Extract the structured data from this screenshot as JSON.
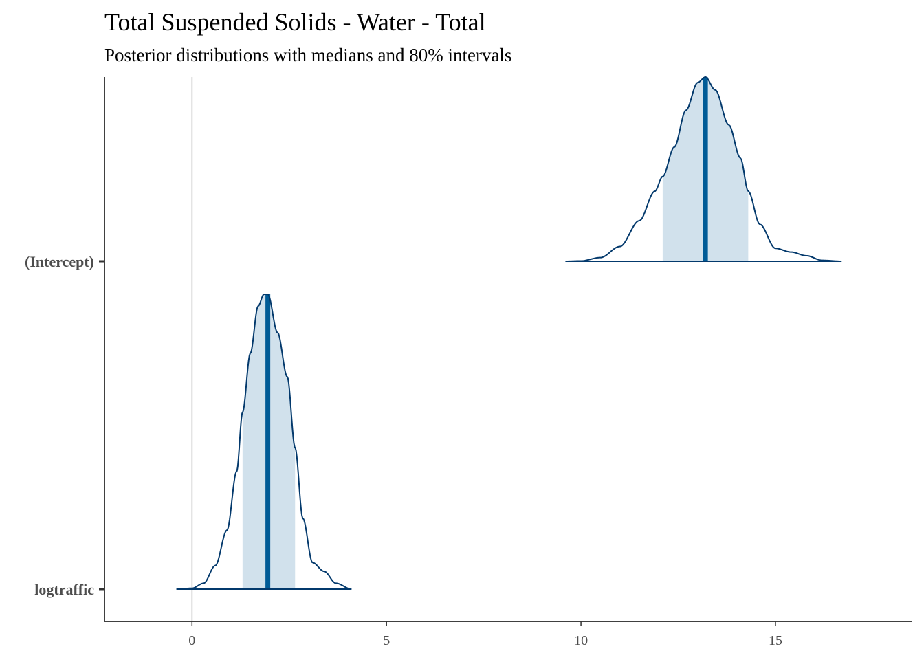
{
  "chart_data": {
    "type": "area",
    "title": "Total Suspended Solids - Water - Total",
    "subtitle": "Posterior distributions with medians and 80% intervals",
    "xlabel": "",
    "ylabel": "",
    "xlim": [
      -2.25,
      18.5
    ],
    "x_ticks": [
      0,
      5,
      10,
      15
    ],
    "x_tick_labels": [
      "0",
      "5",
      "10",
      "15"
    ],
    "reference_line_x": 0,
    "grid": false,
    "legend": "none",
    "colors": {
      "outline": "#03396c",
      "interval_fill": "#d1e1ec",
      "median": "#005b96",
      "reference_line": "#d9d9d9",
      "axis": "#000000"
    },
    "series": [
      {
        "name": "(Intercept)",
        "median": 13.2,
        "interval_80": [
          12.1,
          14.3
        ],
        "range": [
          9.6,
          16.7
        ],
        "density": [
          [
            9.6,
            0.0
          ],
          [
            10.0,
            0.002
          ],
          [
            10.5,
            0.02
          ],
          [
            11.0,
            0.08
          ],
          [
            11.5,
            0.22
          ],
          [
            11.9,
            0.38
          ],
          [
            12.1,
            0.46
          ],
          [
            12.4,
            0.62
          ],
          [
            12.7,
            0.82
          ],
          [
            13.0,
            0.97
          ],
          [
            13.2,
            1.0
          ],
          [
            13.45,
            0.93
          ],
          [
            13.8,
            0.74
          ],
          [
            14.1,
            0.56
          ],
          [
            14.3,
            0.38
          ],
          [
            14.6,
            0.2
          ],
          [
            15.0,
            0.07
          ],
          [
            15.4,
            0.05
          ],
          [
            15.8,
            0.03
          ],
          [
            16.2,
            0.005
          ],
          [
            16.7,
            0.0
          ]
        ]
      },
      {
        "name": "logtraffic",
        "median": 1.95,
        "interval_80": [
          1.3,
          2.65
        ],
        "range": [
          -0.4,
          4.1
        ],
        "density": [
          [
            -0.4,
            0.0
          ],
          [
            0.0,
            0.003
          ],
          [
            0.3,
            0.02
          ],
          [
            0.6,
            0.08
          ],
          [
            0.9,
            0.2
          ],
          [
            1.15,
            0.4
          ],
          [
            1.3,
            0.6
          ],
          [
            1.5,
            0.8
          ],
          [
            1.7,
            0.96
          ],
          [
            1.85,
            1.0
          ],
          [
            1.95,
            1.0
          ],
          [
            2.2,
            0.87
          ],
          [
            2.45,
            0.72
          ],
          [
            2.65,
            0.48
          ],
          [
            2.85,
            0.24
          ],
          [
            3.1,
            0.09
          ],
          [
            3.4,
            0.06
          ],
          [
            3.7,
            0.02
          ],
          [
            4.1,
            0.0
          ]
        ]
      }
    ],
    "y_categories": [
      "(Intercept)",
      "logtraffic"
    ]
  }
}
